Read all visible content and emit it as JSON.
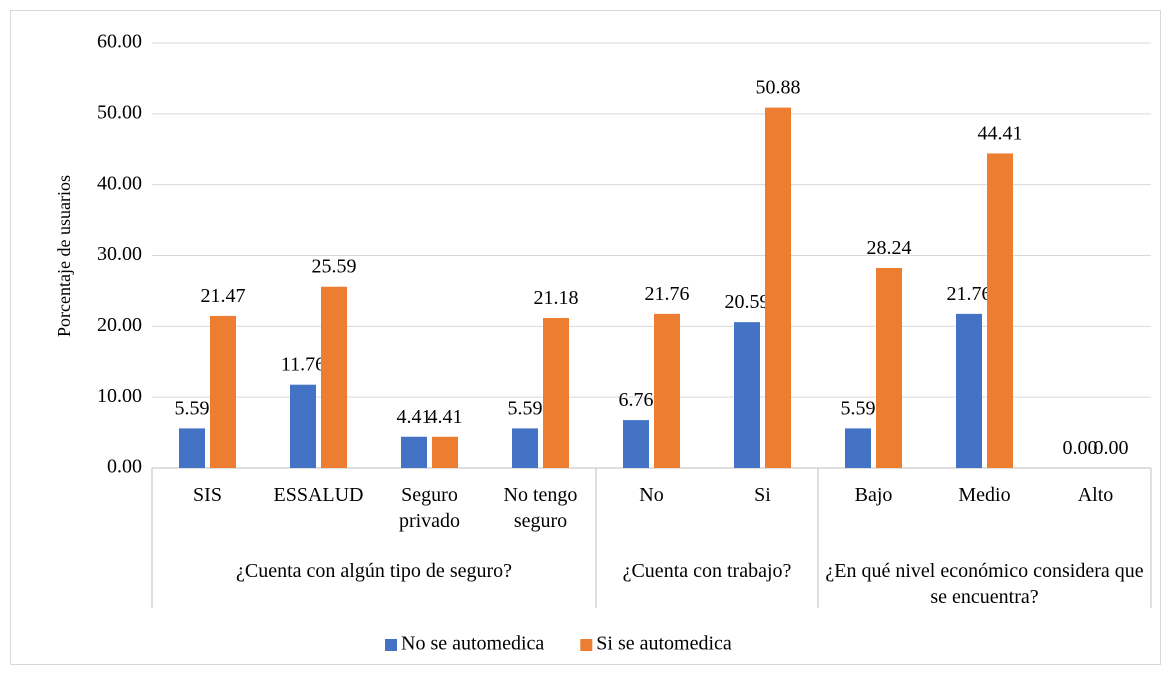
{
  "chart_data": {
    "type": "bar",
    "y_axis_label": "Porcentaje de usuarios",
    "groups": [
      {
        "label": "¿Cuenta con algún tipo de seguro?",
        "categories": [
          "SIS",
          "ESSALUD",
          "Seguro privado",
          "No tengo seguro"
        ]
      },
      {
        "label": "¿Cuenta con trabajo?",
        "categories": [
          "No",
          "Si"
        ]
      },
      {
        "label": "¿En qué nivel económico considera que se encuentra?",
        "categories": [
          "Bajo",
          "Medio",
          "Alto"
        ]
      }
    ],
    "series": [
      {
        "name": "No se automedica",
        "color": "#4472c4",
        "values": [
          5.59,
          11.76,
          4.41,
          5.59,
          6.76,
          20.59,
          5.59,
          21.76,
          0
        ],
        "value_labels": [
          "5.59",
          "11.76",
          "4.41",
          "5.59",
          "6.76",
          "20.59",
          "5.59",
          "21.76",
          "0.00"
        ]
      },
      {
        "name": "Si se automedica",
        "color": "#ed7d31",
        "values": [
          21.47,
          25.59,
          4.41,
          21.18,
          21.76,
          50.88,
          28.24,
          44.41,
          0
        ],
        "value_labels": [
          "21.47",
          "25.59",
          "4.41",
          "21.18",
          "21.76",
          "50.88",
          "28.24",
          "44.41",
          "0.00"
        ]
      }
    ],
    "ylim": [
      0,
      60
    ],
    "yticks": [
      {
        "value": 0,
        "label": "0.00"
      },
      {
        "value": 10,
        "label": "10.00"
      },
      {
        "value": 20,
        "label": "20.00"
      },
      {
        "value": 30,
        "label": "30.00"
      },
      {
        "value": 40,
        "label": "40.00"
      },
      {
        "value": 50,
        "label": "50.00"
      },
      {
        "value": 60,
        "label": "60.00"
      }
    ],
    "grid": true,
    "legend": "bottom"
  }
}
